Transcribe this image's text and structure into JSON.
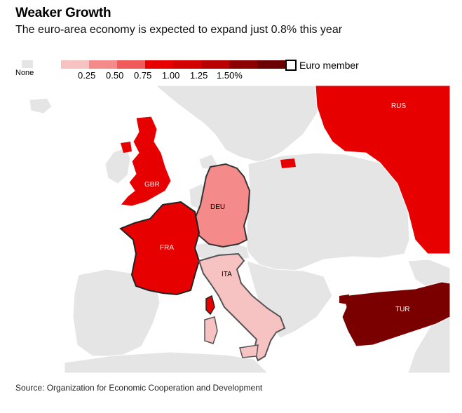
{
  "header": {
    "title": "Weaker Growth",
    "subtitle": "The euro-area economy is expected to expand just 0.8% this year"
  },
  "legend": {
    "none_label": "None",
    "none_color": "#e5e5e5",
    "scale_colors": [
      "#f7c2c2",
      "#f58a8a",
      "#f05a5a",
      "#e60000",
      "#d30000",
      "#b80000",
      "#8c0000",
      "#6b0000"
    ],
    "ticks": [
      "0.25",
      "0.50",
      "0.75",
      "1.00",
      "1.25",
      "1.50%"
    ],
    "euro_member_label": "Euro member"
  },
  "map": {
    "background_land": "#e5e5e5",
    "countries": [
      {
        "code": "GBR",
        "growth_percent": 1.4,
        "color": "#e60000",
        "euro_member": false
      },
      {
        "code": "DEU",
        "growth_percent": 0.7,
        "color": "#f58a8a",
        "euro_member": true
      },
      {
        "code": "FRA",
        "growth_percent": 1.3,
        "color": "#e60000",
        "euro_member": true
      },
      {
        "code": "ITA",
        "growth_percent": 0.1,
        "color": "#f7c2c2",
        "euro_member": true
      },
      {
        "code": "RUS",
        "growth_percent": 1.4,
        "color": "#e60000",
        "euro_member": false
      },
      {
        "code": "TUR",
        "growth_percent": 4.0,
        "color": "#7a0000",
        "euro_member": false
      }
    ]
  },
  "source": "Source: Organization for Economic Cooperation and Development"
}
